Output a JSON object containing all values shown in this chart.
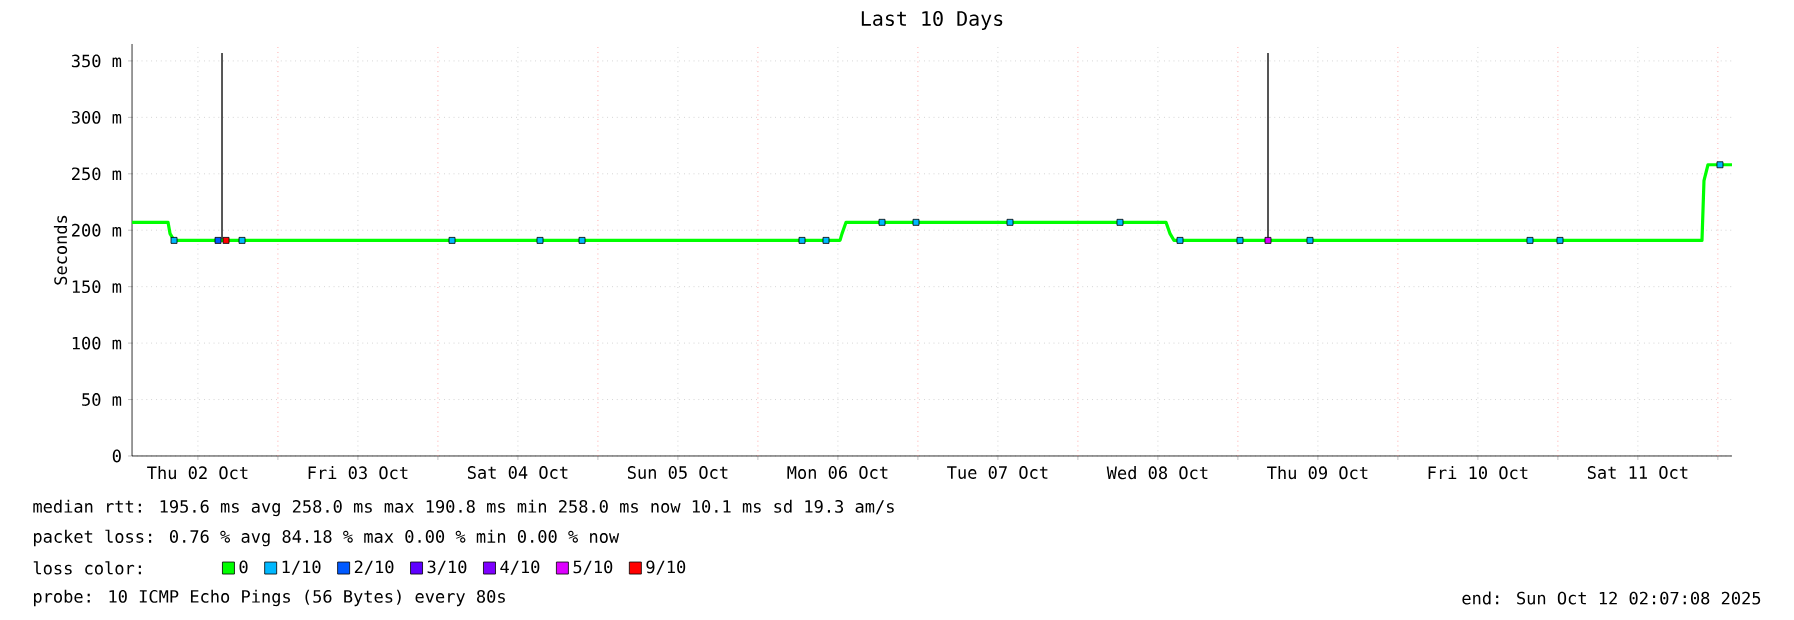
{
  "chart_data": {
    "type": "line",
    "title": "Last 10 Days",
    "ylabel": "Seconds",
    "legend_title": "loss color:",
    "xlim": [
      "2025-10-02T02:07",
      "2025-10-12T02:07"
    ],
    "xticks": [
      {
        "value": "2025-10-02T12:00",
        "label": "Thu 02 Oct"
      },
      {
        "value": "2025-10-03T00:00",
        "label": null
      },
      {
        "value": "2025-10-03T12:00",
        "label": "Fri 03 Oct"
      },
      {
        "value": "2025-10-04T00:00",
        "label": null
      },
      {
        "value": "2025-10-04T12:00",
        "label": "Sat 04 Oct"
      },
      {
        "value": "2025-10-05T00:00",
        "label": null
      },
      {
        "value": "2025-10-05T12:00",
        "label": "Sun 05 Oct"
      },
      {
        "value": "2025-10-06T00:00",
        "label": null
      },
      {
        "value": "2025-10-06T12:00",
        "label": "Mon 06 Oct"
      },
      {
        "value": "2025-10-07T00:00",
        "label": null
      },
      {
        "value": "2025-10-07T12:00",
        "label": "Tue 07 Oct"
      },
      {
        "value": "2025-10-08T00:00",
        "label": null
      },
      {
        "value": "2025-10-08T12:00",
        "label": "Wed 08 Oct"
      },
      {
        "value": "2025-10-09T00:00",
        "label": null
      },
      {
        "value": "2025-10-09T12:00",
        "label": "Thu 09 Oct"
      },
      {
        "value": "2025-10-10T00:00",
        "label": null
      },
      {
        "value": "2025-10-10T12:00",
        "label": "Fri 10 Oct"
      },
      {
        "value": "2025-10-11T00:00",
        "label": null
      },
      {
        "value": "2025-10-11T12:00",
        "label": "Sat 11 Oct"
      },
      {
        "value": "2025-10-12T00:00",
        "label": null
      }
    ],
    "ylim": [
      0,
      365
    ],
    "yticks": [
      0,
      {
        "value": 50,
        "label": "50 m"
      },
      {
        "value": 100,
        "label": "100 m"
      },
      {
        "value": 150,
        "label": "150 m"
      },
      {
        "value": 200,
        "label": "200 m"
      },
      {
        "value": 250,
        "label": "250 m"
      },
      {
        "value": 300,
        "label": "300 m"
      },
      {
        "value": 350,
        "label": "350 m"
      }
    ],
    "grid": true,
    "legend": "bottom",
    "series": [
      {
        "color": "#555555",
        "x": [
          "2025-10-02T15:37",
          "2025-10-02T15:37"
        ],
        "values": [
          191,
          357
        ]
      },
      {
        "color": "#555555",
        "x": [
          "2025-10-09T04:31",
          "2025-10-09T04:31"
        ],
        "values": [
          191,
          357
        ]
      },
      {
        "name": "0",
        "color": "#00ff00",
        "x": [
          "2025-10-02T02:07",
          "2025-10-02T07:31",
          "2025-10-02T07:49",
          "2025-10-02T08:25",
          "2025-10-06T12:19",
          "2025-10-06T12:37",
          "2025-10-06T13:13",
          "2025-10-08T13:13",
          "2025-10-08T13:49",
          "2025-10-08T14:25",
          "2025-10-11T21:37",
          "2025-10-11T21:55",
          "2025-10-11T22:31",
          "2025-10-12T02:07"
        ],
        "values": [
          207,
          207,
          197,
          191,
          191,
          197,
          207,
          207,
          197,
          191,
          191,
          244,
          258,
          258
        ]
      },
      {
        "type": "scatter",
        "name": "1/10",
        "color": "#00b8ff",
        "marker": "square",
        "x": [
          "2025-10-02T08:25",
          "2025-10-02T18:37",
          "2025-10-04T02:07",
          "2025-10-04T15:19",
          "2025-10-04T21:37",
          "2025-10-06T06:37",
          "2025-10-06T10:13",
          "2025-10-06T18:37",
          "2025-10-06T23:43",
          "2025-10-07T13:49",
          "2025-10-08T06:19",
          "2025-10-08T15:19",
          "2025-10-09T00:19",
          "2025-10-09T10:49",
          "2025-10-10T19:49",
          "2025-10-11T00:19",
          "2025-10-12T00:19"
        ],
        "values": [
          191,
          191,
          191,
          191,
          191,
          191,
          191,
          207,
          207,
          207,
          207,
          191,
          191,
          191,
          191,
          191,
          258
        ]
      },
      {
        "type": "scatter",
        "name": "2/10",
        "color": "#0059ff",
        "marker": "square",
        "x": [
          "2025-10-02T15:01"
        ],
        "values": [
          191
        ]
      },
      {
        "type": "scatter",
        "name": "3/10",
        "color": "#5e00ff",
        "marker": "square"
      },
      {
        "type": "scatter",
        "name": "4/10",
        "color": "#7e00ff",
        "marker": "square"
      },
      {
        "type": "scatter",
        "name": "5/10",
        "color": "#dd00ff",
        "marker": "square",
        "x": [
          "2025-10-09T04:31"
        ],
        "values": [
          191
        ]
      },
      {
        "type": "scatter",
        "name": "9/10",
        "color": "#ff0000",
        "marker": "square",
        "x": [
          "2025-10-02T16:13"
        ],
        "values": [
          191
        ]
      }
    ],
    "annotations": [
      "median rtt: 195.6 ms avg 258.0 ms max 190.8 ms min 258.0 ms now 10.1 ms sd 19.3 am/s",
      "packet loss: 0.76 % avg 84.18 % max 0.00 % min 0.00 % now",
      "probe: 10 ICMP Echo Pings (56 Bytes) every 80s",
      "end: Sun Oct 12 02:07:08 2025"
    ]
  }
}
